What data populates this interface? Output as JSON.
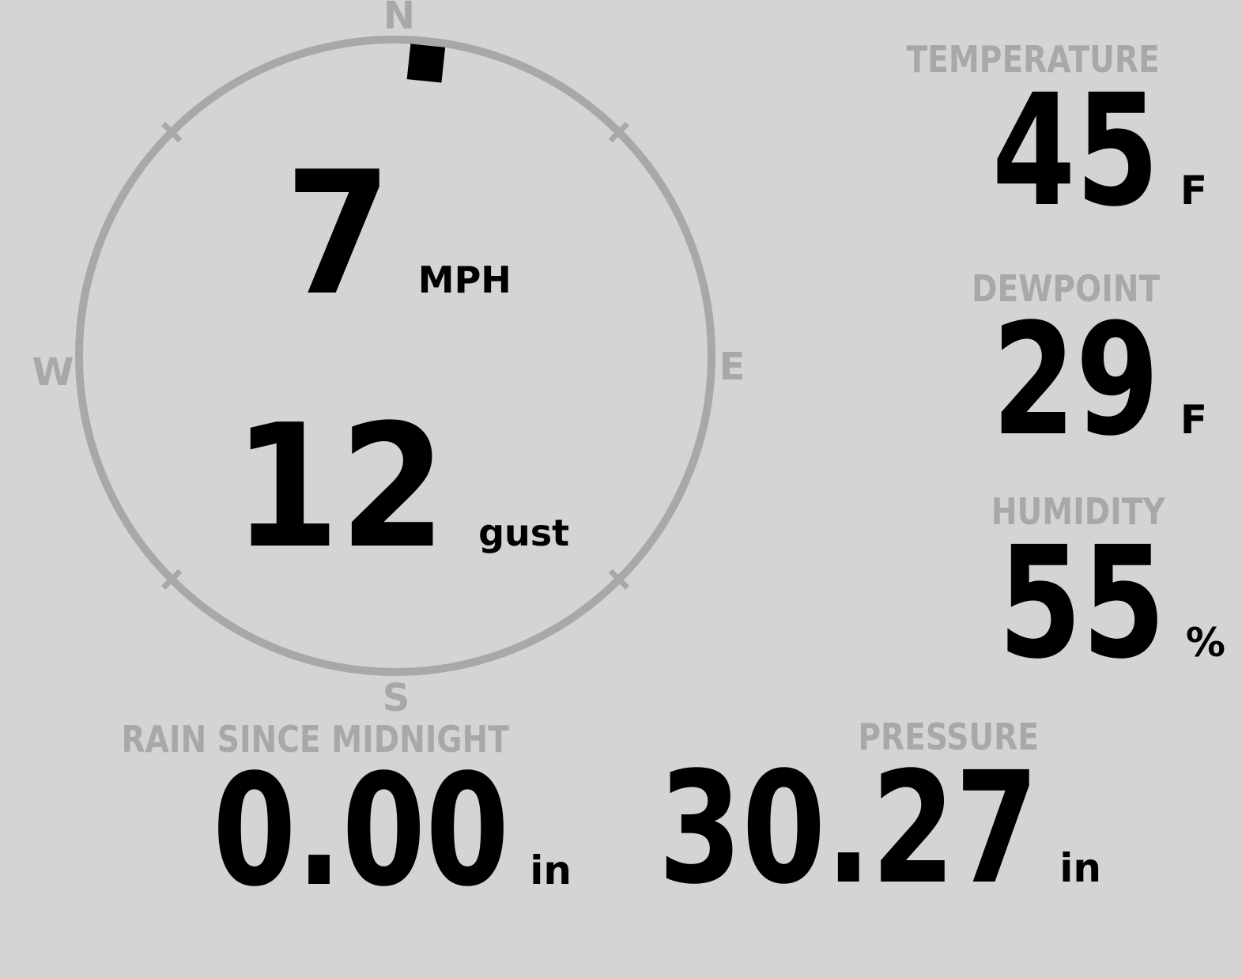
{
  "colors": {
    "background": "#d4d4d4",
    "muted_gray": "#a8a8a8",
    "value_black": "#000000"
  },
  "compass": {
    "cardinals": {
      "north": "N",
      "east": "E",
      "south": "S",
      "west": "W"
    },
    "direction_deg": 6,
    "wind_speed": {
      "value": "7",
      "unit": "MPH"
    },
    "wind_gust": {
      "value": "12",
      "unit": "gust"
    }
  },
  "metrics": {
    "temperature": {
      "label": "TEMPERATURE",
      "value": "45",
      "unit": "F"
    },
    "dewpoint": {
      "label": "DEWPOINT",
      "value": "29",
      "unit": "F"
    },
    "humidity": {
      "label": "HUMIDITY",
      "value": "55",
      "unit": "%"
    },
    "rain": {
      "label": "RAIN SINCE MIDNIGHT",
      "value": "0.00",
      "unit": "in"
    },
    "pressure": {
      "label": "PRESSURE",
      "value": "30.27",
      "unit": "in"
    }
  }
}
